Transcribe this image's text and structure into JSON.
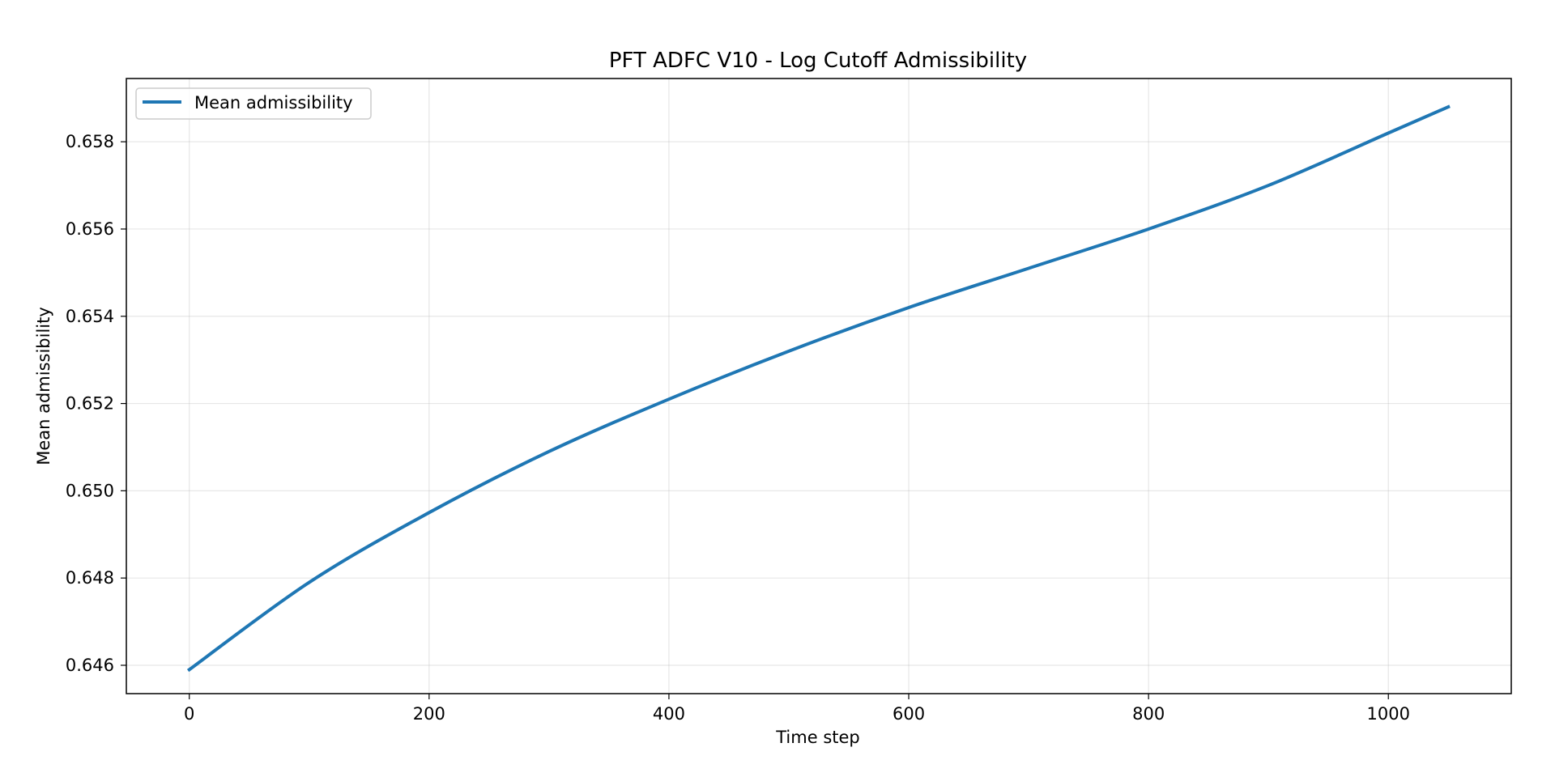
{
  "chart_data": {
    "type": "line",
    "title": "PFT ADFC V10 - Log Cutoff Admissibility",
    "xlabel": "Time step",
    "ylabel": "Mean admissibility",
    "xlim": [
      -52.5,
      1102.5
    ],
    "ylim": [
      0.64535,
      0.65945
    ],
    "x_ticks": [
      0,
      200,
      400,
      600,
      800,
      1000
    ],
    "x_tick_labels": [
      "0",
      "200",
      "400",
      "600",
      "800",
      "1000"
    ],
    "y_ticks": [
      0.646,
      0.648,
      0.65,
      0.652,
      0.654,
      0.656,
      0.658
    ],
    "y_tick_labels": [
      "0.646",
      "0.648",
      "0.650",
      "0.652",
      "0.654",
      "0.656",
      "0.658"
    ],
    "grid": true,
    "legend_position": "top-left",
    "series": [
      {
        "name": "Mean admissibility",
        "color": "#1f77b4",
        "x": [
          0,
          100,
          200,
          300,
          400,
          500,
          600,
          700,
          800,
          900,
          1000,
          1050
        ],
        "y": [
          0.6459,
          0.6479,
          0.6495,
          0.6509,
          0.6521,
          0.6532,
          0.6542,
          0.6551,
          0.656,
          0.657,
          0.6582,
          0.6588
        ]
      }
    ]
  }
}
